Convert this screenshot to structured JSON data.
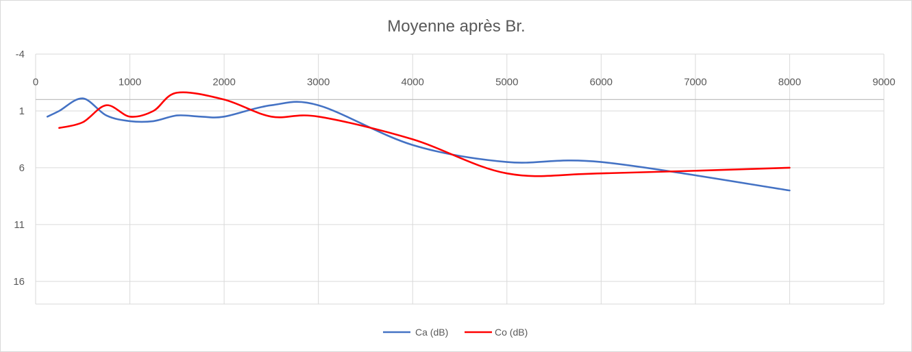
{
  "chart_data": {
    "type": "line",
    "title": "Moyenne après Br.",
    "xlabel": "",
    "ylabel": "",
    "xlim": [
      0,
      9000
    ],
    "ylim": [
      -4,
      18
    ],
    "y_inverted": true,
    "x_axis_position": "top",
    "x_ticks": [
      "0",
      "1000",
      "2000",
      "3000",
      "4000",
      "5000",
      "6000",
      "7000",
      "8000",
      "9000"
    ],
    "y_ticks": [
      "-4",
      "1",
      "6",
      "11",
      "16"
    ],
    "x_tick_values": [
      0,
      1000,
      2000,
      3000,
      4000,
      5000,
      6000,
      7000,
      8000,
      9000
    ],
    "y_tick_values": [
      -4,
      1,
      6,
      11,
      16
    ],
    "grid": true,
    "legend_position": "bottom",
    "series": [
      {
        "name": "Ca (dB)",
        "color": "#4472c4",
        "x": [
          125,
          250,
          500,
          750,
          1000,
          1250,
          1500,
          1750,
          2000,
          2500,
          3000,
          4000,
          5000,
          6000,
          8000
        ],
        "y": [
          1.5,
          1.0,
          -0.1,
          1.4,
          1.9,
          1.9,
          1.4,
          1.5,
          1.5,
          0.5,
          0.5,
          4.0,
          5.5,
          5.5,
          8.0
        ]
      },
      {
        "name": "Co (dB)",
        "color": "#ff0000",
        "x": [
          250,
          500,
          750,
          1000,
          1250,
          1500,
          2000,
          2500,
          3000,
          4000,
          5000,
          6000,
          8000
        ],
        "y": [
          2.5,
          2.0,
          0.5,
          1.5,
          1.0,
          -0.6,
          0.0,
          1.5,
          1.5,
          3.5,
          6.5,
          6.5,
          6.0
        ]
      }
    ]
  }
}
